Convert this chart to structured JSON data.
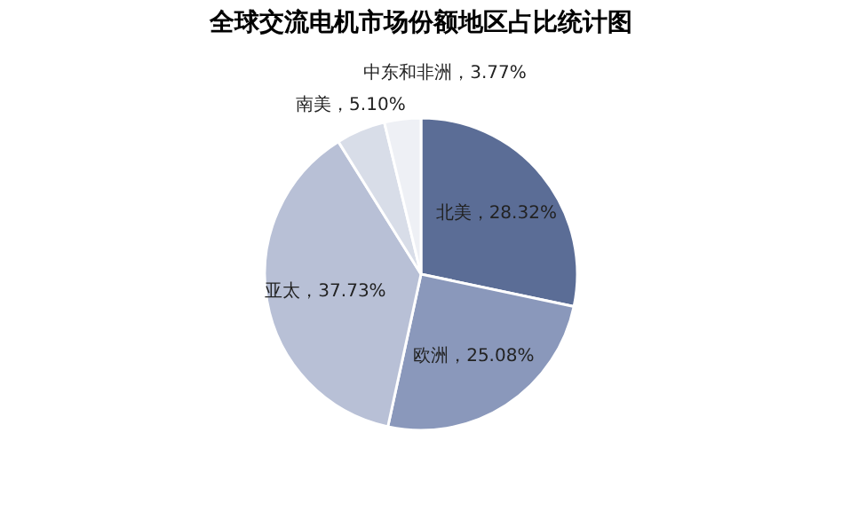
{
  "chart_data": {
    "type": "pie",
    "title": "全球交流电机市场份额地区占比统计图",
    "categories": [
      "北美",
      "欧洲",
      "亚太",
      "南美",
      "中东和非洲"
    ],
    "values": [
      28.32,
      25.08,
      37.73,
      5.1,
      3.77
    ],
    "colors": [
      "#5b6d96",
      "#8a98bb",
      "#b8c0d6",
      "#d8dde8",
      "#eef0f5"
    ],
    "value_labels": [
      "28.32%",
      "25.08%",
      "37.73%",
      "5.10%",
      "3.77%"
    ],
    "legend": false
  }
}
